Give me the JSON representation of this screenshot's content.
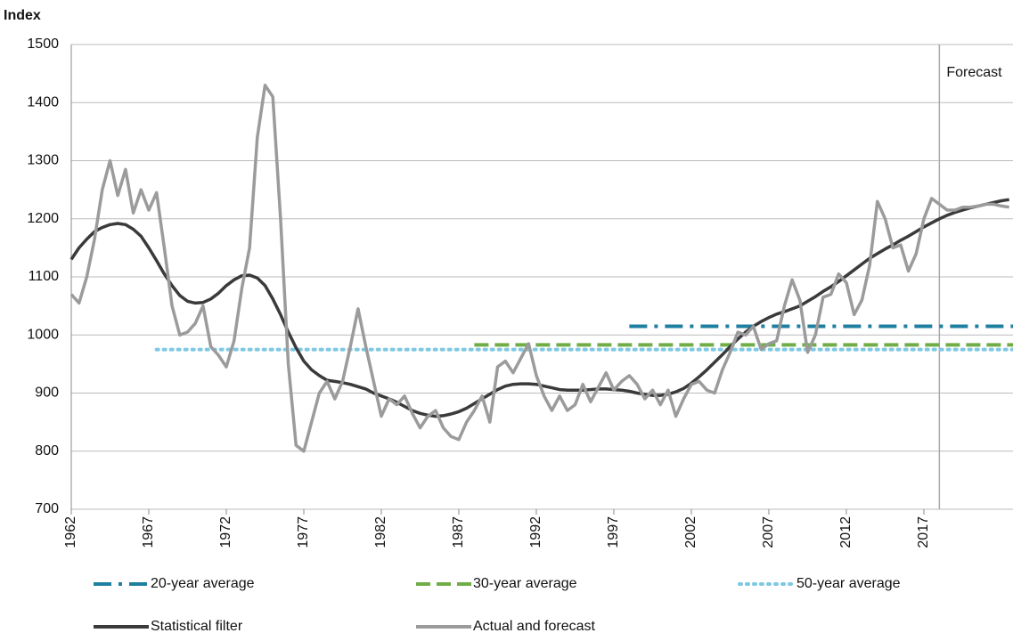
{
  "chart_data": {
    "type": "line",
    "y_label": "Index",
    "xlim": [
      1962,
      2022.75
    ],
    "xticks": [
      1962,
      1967,
      1972,
      1977,
      1982,
      1987,
      1992,
      1997,
      2002,
      2007,
      2012,
      2017
    ],
    "ylim": [
      700,
      1500
    ],
    "yticks": [
      700,
      800,
      900,
      1000,
      1100,
      1200,
      1300,
      1400,
      1500
    ],
    "grid": true,
    "x": [
      1962,
      1962.5,
      1963,
      1963.5,
      1964,
      1964.5,
      1965,
      1965.5,
      1966,
      1966.5,
      1967,
      1967.5,
      1968,
      1968.5,
      1969,
      1969.5,
      1970,
      1970.5,
      1971,
      1971.5,
      1972,
      1972.5,
      1973,
      1973.5,
      1974,
      1974.5,
      1975,
      1975.5,
      1976,
      1976.5,
      1977,
      1977.5,
      1978,
      1978.5,
      1979,
      1979.5,
      1980,
      1980.5,
      1981,
      1981.5,
      1982,
      1982.5,
      1983,
      1983.5,
      1984,
      1984.5,
      1985,
      1985.5,
      1986,
      1986.5,
      1987,
      1987.5,
      1988,
      1988.5,
      1989,
      1989.5,
      1990,
      1990.5,
      1991,
      1991.5,
      1992,
      1992.5,
      1993,
      1993.5,
      1994,
      1994.5,
      1995,
      1995.5,
      1996,
      1996.5,
      1997,
      1997.5,
      1998,
      1998.5,
      1999,
      1999.5,
      2000,
      2000.5,
      2001,
      2001.5,
      2002,
      2002.5,
      2003,
      2003.5,
      2004,
      2004.5,
      2005,
      2005.5,
      2006,
      2006.5,
      2007,
      2007.5,
      2008,
      2008.5,
      2009,
      2009.5,
      2010,
      2010.5,
      2011,
      2011.5,
      2012,
      2012.5,
      2013,
      2013.5,
      2014,
      2014.5,
      2015,
      2015.5,
      2016,
      2016.5,
      2017,
      2017.5,
      2018,
      2018.5,
      2019,
      2019.5,
      2020,
      2020.5,
      2021,
      2021.5,
      2022,
      2022.5
    ],
    "series": [
      {
        "name": "Statistical filter",
        "color": "#3a3a3a",
        "values": [
          1130,
          1150,
          1165,
          1178,
          1185,
          1190,
          1192,
          1190,
          1182,
          1170,
          1150,
          1128,
          1105,
          1085,
          1068,
          1058,
          1055,
          1056,
          1062,
          1072,
          1085,
          1095,
          1102,
          1103,
          1098,
          1085,
          1062,
          1035,
          1005,
          978,
          955,
          940,
          930,
          922,
          920,
          918,
          915,
          911,
          907,
          900,
          895,
          890,
          884,
          877,
          870,
          865,
          862,
          860,
          861,
          864,
          868,
          874,
          882,
          890,
          898,
          906,
          912,
          915,
          916,
          916,
          915,
          912,
          909,
          906,
          905,
          905,
          905,
          906,
          907,
          907,
          906,
          905,
          903,
          900,
          898,
          896,
          896,
          898,
          902,
          908,
          917,
          928,
          940,
          953,
          966,
          980,
          993,
          1005,
          1015,
          1023,
          1030,
          1036,
          1040,
          1045,
          1050,
          1058,
          1066,
          1075,
          1083,
          1092,
          1102,
          1112,
          1122,
          1132,
          1140,
          1148,
          1155,
          1163,
          1170,
          1178,
          1186,
          1193,
          1200,
          1206,
          1211,
          1215,
          1219,
          1222,
          1225,
          1228,
          1231,
          1233
        ]
      },
      {
        "name": "Actual and forecast",
        "color": "#9b9b9b",
        "values": [
          1070,
          1055,
          1100,
          1165,
          1250,
          1300,
          1240,
          1285,
          1210,
          1250,
          1215,
          1245,
          1150,
          1050,
          1000,
          1005,
          1020,
          1050,
          980,
          965,
          945,
          990,
          1080,
          1150,
          1340,
          1430,
          1410,
          1200,
          950,
          810,
          800,
          850,
          900,
          920,
          890,
          920,
          980,
          1045,
          980,
          920,
          860,
          890,
          880,
          895,
          865,
          840,
          860,
          870,
          840,
          825,
          820,
          850,
          870,
          895,
          850,
          945,
          955,
          935,
          960,
          985,
          930,
          895,
          870,
          895,
          870,
          880,
          915,
          885,
          910,
          935,
          905,
          920,
          930,
          915,
          890,
          905,
          880,
          905,
          860,
          890,
          915,
          920,
          905,
          900,
          940,
          970,
          1005,
          1000,
          1015,
          975,
          985,
          990,
          1050,
          1095,
          1060,
          970,
          1000,
          1065,
          1070,
          1105,
          1090,
          1035,
          1060,
          1120,
          1230,
          1200,
          1150,
          1155,
          1110,
          1140,
          1200,
          1235,
          1225,
          1215,
          1215,
          1220,
          1220,
          1222,
          1225,
          1225,
          1222,
          1220
        ]
      }
    ],
    "reference_lines": [
      {
        "name": "20-year average",
        "color": "#1f7fa0",
        "value": 1015,
        "start": 1998
      },
      {
        "name": "30-year average",
        "color": "#70ad47",
        "value": 983,
        "start": 1988
      },
      {
        "name": "50-year average",
        "color": "#7ec8e3",
        "value": 975,
        "start": 1967.5
      }
    ],
    "annotation": {
      "text": "Forecast",
      "x": 2018
    }
  }
}
